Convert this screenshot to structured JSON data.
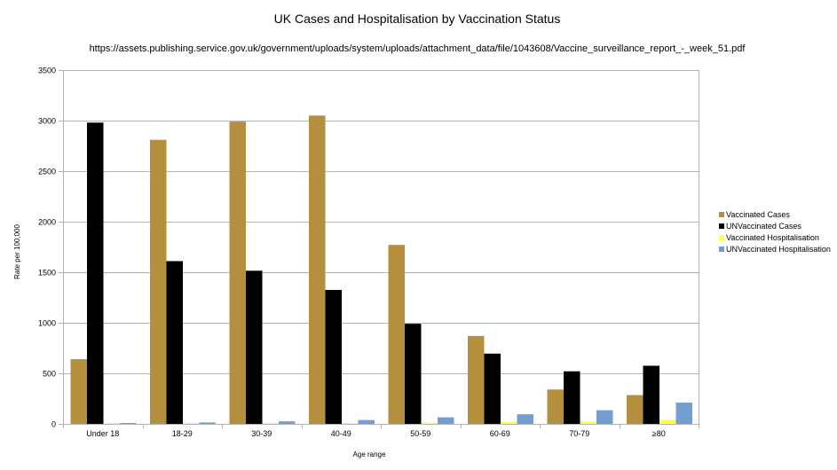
{
  "chart_data": {
    "type": "bar",
    "title": "UK Cases and Hospitalisation by Vaccination Status",
    "subtitle": "https://assets.publishing.service.gov.uk/government/uploads/system/uploads/attachment_data/file/1043608/Vaccine_surveillance_report_-_week_51.pdf",
    "xlabel": "Age range",
    "ylabel": "Rate per 100,000",
    "ylim": [
      0,
      3500
    ],
    "yticks": [
      0,
      500,
      1000,
      1500,
      2000,
      2500,
      3000,
      3500
    ],
    "grid": true,
    "legend_position": "right",
    "categories": [
      "Under 18",
      "18-29",
      "30-39",
      "40-49",
      "50-59",
      "60-69",
      "70-79",
      "≥80"
    ],
    "series": [
      {
        "name": "Vaccinated Cases",
        "color": "#b38f3e",
        "values": [
          640,
          2810,
          2990,
          3050,
          1770,
          870,
          340,
          285
        ]
      },
      {
        "name": "UNVaccinated Cases",
        "color": "#000000",
        "values": [
          2980,
          1610,
          1515,
          1325,
          990,
          695,
          520,
          575
        ]
      },
      {
        "name": "Vaccinated Hospitalisation",
        "color": "#ffff4d",
        "values": [
          1,
          2,
          3,
          5,
          12,
          20,
          25,
          42
        ]
      },
      {
        "name": "UNVaccinated Hospitalisation",
        "color": "#729fcf",
        "values": [
          8,
          14,
          25,
          38,
          65,
          95,
          135,
          210
        ]
      }
    ]
  }
}
